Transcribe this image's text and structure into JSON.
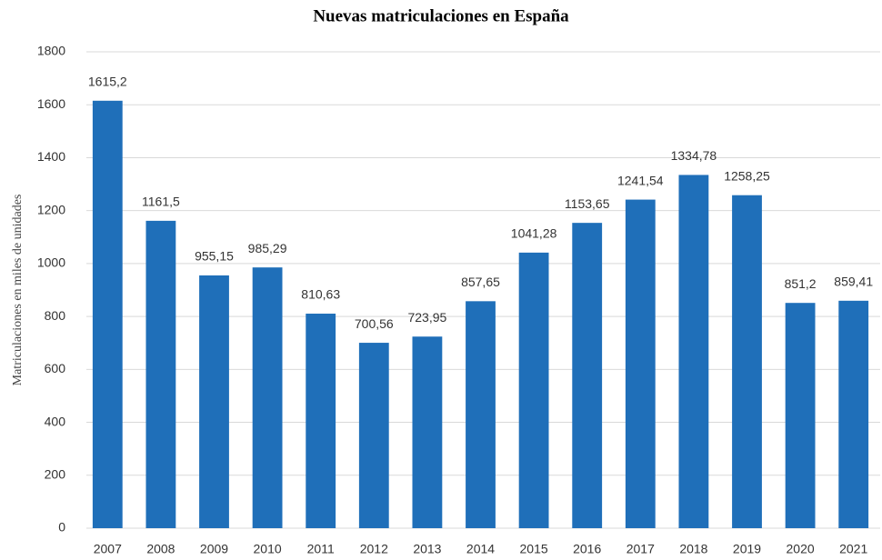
{
  "chart_data": {
    "type": "bar",
    "title": "Nuevas matriculaciones en España",
    "y_label": "Matriculaciones en miles de unidades",
    "categories": [
      "2007",
      "2008",
      "2009",
      "2010",
      "2011",
      "2012",
      "2013",
      "2014",
      "2015",
      "2016",
      "2017",
      "2018",
      "2019",
      "2020",
      "2021"
    ],
    "values": [
      1615.2,
      1161.5,
      955.15,
      985.29,
      810.63,
      700.56,
      723.95,
      857.65,
      1041.28,
      1153.65,
      1241.54,
      1334.78,
      1258.25,
      851.2,
      859.41
    ],
    "value_labels": [
      "1615,2",
      "1161,5",
      "955,15",
      "985,29",
      "810,63",
      "700,56",
      "723,95",
      "857,65",
      "1041,28",
      "1153,65",
      "1241,54",
      "1334,78",
      "1258,25",
      "851,2",
      "859,41"
    ],
    "color": "#1f6fb9",
    "ylim": [
      0,
      1800
    ],
    "yticks": [
      0,
      200,
      400,
      600,
      800,
      1000,
      1200,
      1400,
      1600,
      1800
    ],
    "grid": true
  }
}
